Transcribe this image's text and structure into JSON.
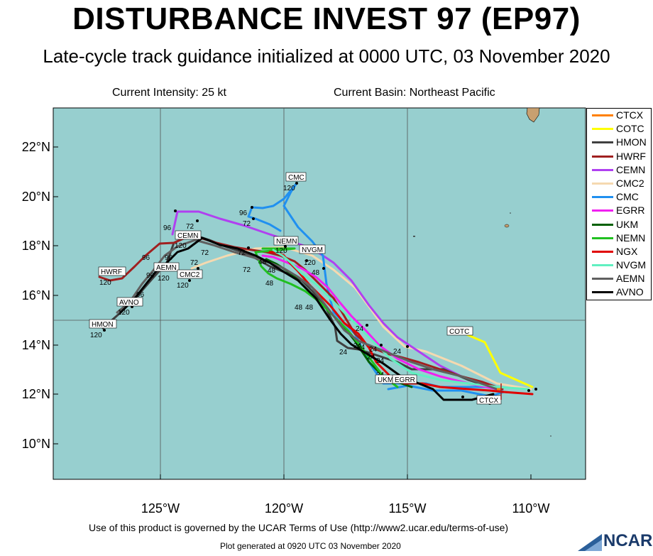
{
  "header": {
    "title": "DISTURBANCE INVEST 97 (EP97)",
    "subtitle": "Late-cycle track guidance initialized at 0000 UTC, 03 November 2020",
    "current_intensity": "Current Intensity: 25 kt",
    "current_basin": "Current Basin: Northeast Pacific"
  },
  "axes": {
    "lon_labels": [
      "125°W",
      "120°W",
      "115°W",
      "110°W"
    ],
    "lat_labels": [
      "22°N",
      "20°N",
      "18°N",
      "16°N",
      "14°N",
      "12°N",
      "10°N"
    ]
  },
  "legend": [
    {
      "name": "CTCX",
      "color": "#ff8000"
    },
    {
      "name": "COTC",
      "color": "#ffff00"
    },
    {
      "name": "HMON",
      "color": "#404040"
    },
    {
      "name": "HWRF",
      "color": "#a02020"
    },
    {
      "name": "CEMN",
      "color": "#b040f0"
    },
    {
      "name": "CMC2",
      "color": "#f5d9b0"
    },
    {
      "name": "CMC",
      "color": "#2090f0"
    },
    {
      "name": "EGRR",
      "color": "#f020f0"
    },
    {
      "name": "UKM",
      "color": "#006000"
    },
    {
      "name": "NEMN",
      "color": "#20c020"
    },
    {
      "name": "NGX",
      "color": "#e00000"
    },
    {
      "name": "NVGM",
      "color": "#60f0c0"
    },
    {
      "name": "AEMN",
      "color": "#606060"
    },
    {
      "name": "AVNO",
      "color": "#000000"
    }
  ],
  "track_labels": [
    {
      "text": "CMC"
    },
    {
      "text": "NEMN"
    },
    {
      "text": "NVGM"
    },
    {
      "text": "CEMN"
    },
    {
      "text": "AEMN"
    },
    {
      "text": "CMC2"
    },
    {
      "text": "HWRF"
    },
    {
      "text": "AVNO"
    },
    {
      "text": "HMON"
    },
    {
      "text": "COTC"
    },
    {
      "text": "UKM"
    },
    {
      "text": "EGRR"
    },
    {
      "text": "CTCX"
    }
  ],
  "hour_labels": [
    "24",
    "48",
    "72",
    "96",
    "120"
  ],
  "footer": {
    "terms": "Use of this product is governed by the UCAR Terms of Use (http://www2.ucar.edu/terms-of-use)",
    "generated": "Plot generated at 0920 UTC   03 November 2020",
    "logo": "NCAR"
  },
  "colors": {
    "ocean": "#97cfcf",
    "land": "#c8a070",
    "grid": "#555555"
  }
}
